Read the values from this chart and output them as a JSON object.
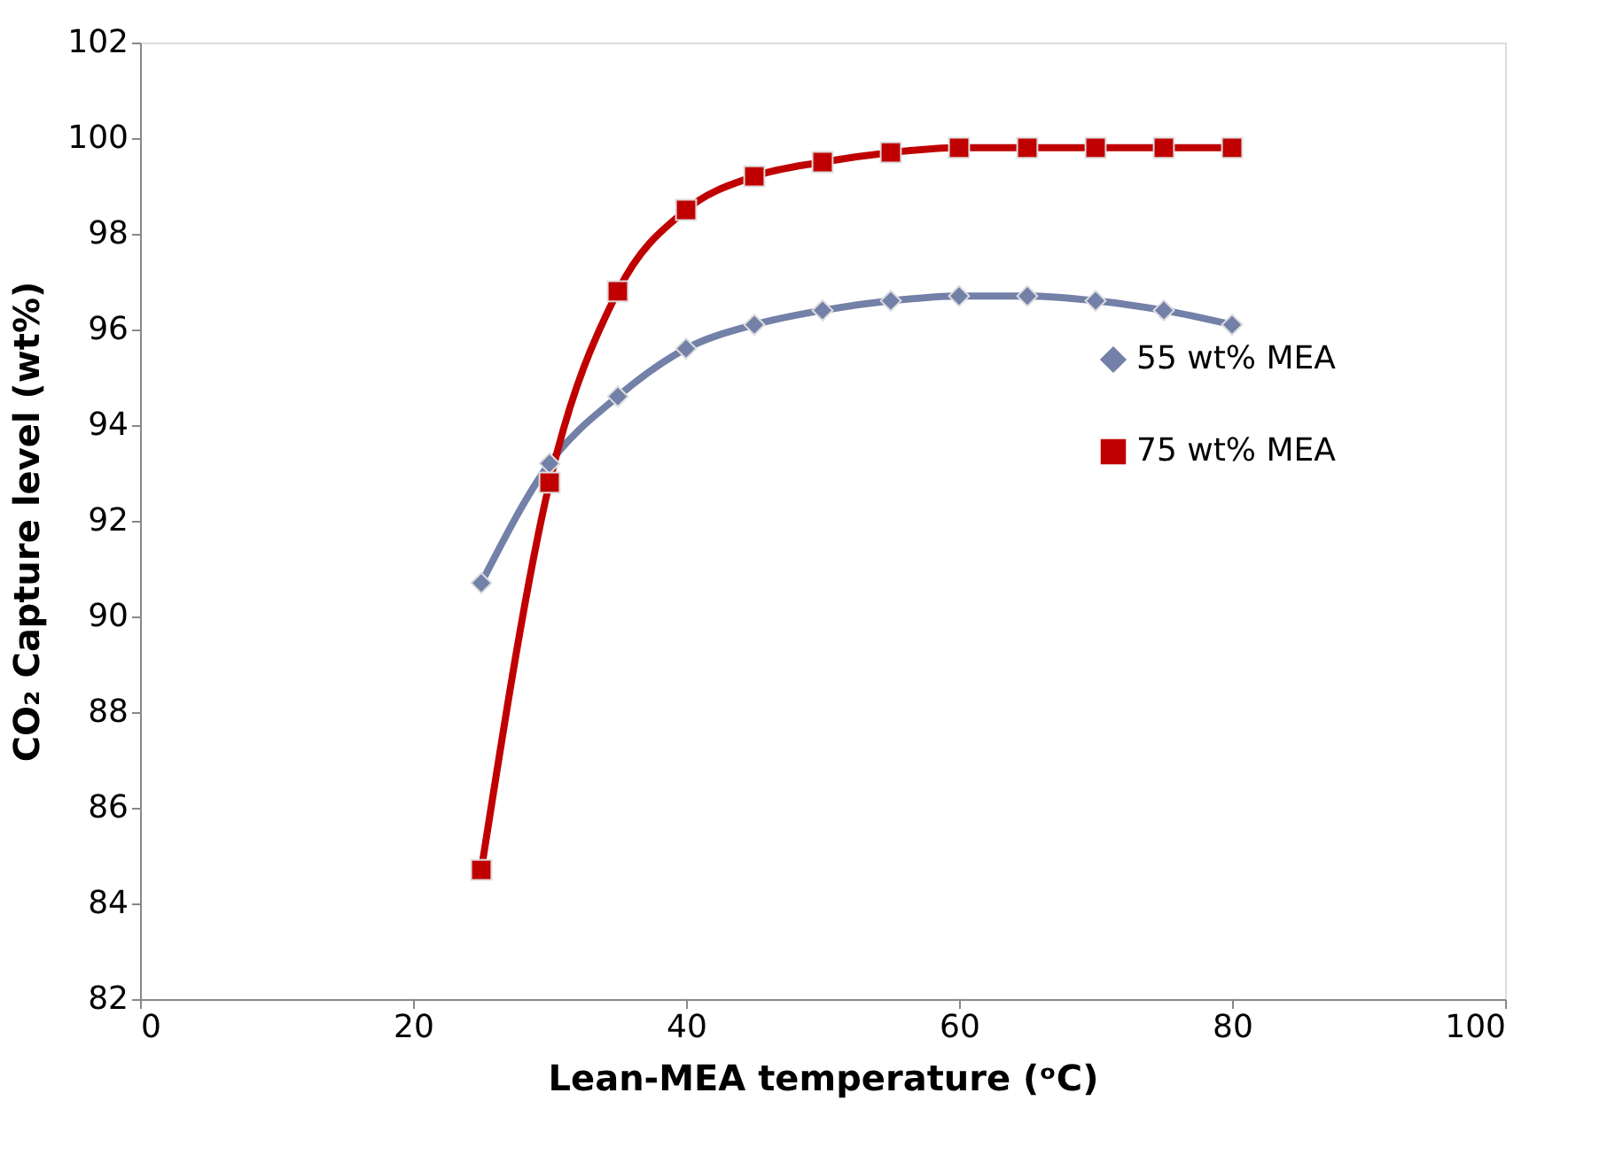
{
  "chart_data": {
    "type": "line",
    "xlabel": "Lean-MEA temperature (ᵒC)",
    "ylabel": "CO₂ Capture level (wt%)",
    "xlim": [
      0,
      100
    ],
    "xticks": [
      0,
      20,
      40,
      60,
      80,
      100
    ],
    "ylim": [
      82,
      102
    ],
    "yticks": [
      82,
      84,
      86,
      88,
      90,
      92,
      94,
      96,
      98,
      100,
      102
    ],
    "x": [
      25,
      30,
      35,
      40,
      45,
      50,
      55,
      60,
      65,
      70,
      75,
      80
    ],
    "grid": false,
    "legend": "right",
    "series": [
      {
        "name": "55 wt% MEA",
        "color": "#7380a8",
        "marker": "diamond",
        "values": [
          90.7,
          93.2,
          94.6,
          95.6,
          96.1,
          96.4,
          96.6,
          96.7,
          96.7,
          96.6,
          96.4,
          96.1
        ]
      },
      {
        "name": "75 wt% MEA",
        "color": "#c00000",
        "marker": "square",
        "values": [
          84.7,
          92.8,
          96.8,
          98.5,
          99.2,
          99.5,
          99.7,
          99.8,
          99.8,
          99.8,
          99.8,
          99.8
        ]
      }
    ]
  }
}
